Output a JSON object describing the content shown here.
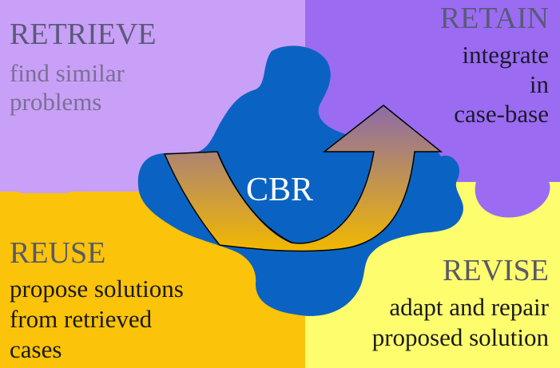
{
  "colors": {
    "retrieve": "#c9a0f7",
    "retain": "#9b6cf2",
    "reuse": "#fbc30a",
    "revise": "#fdfd6e",
    "center": "#0a63c2",
    "arrow_start": "#8c6ba8",
    "arrow_end": "#f2b800"
  },
  "icons": {
    "puzzle": "puzzle-piece-icon",
    "arrow": "curved-arrow-icon"
  },
  "retrieve": {
    "title": "RETRIEVE",
    "lines": [
      "find similar",
      "problems"
    ]
  },
  "retain": {
    "title": "RETAIN",
    "lines": [
      "integrate",
      "in",
      "case-base"
    ]
  },
  "reuse": {
    "title": "REUSE",
    "lines": [
      "propose solutions",
      "from retrieved",
      "cases"
    ]
  },
  "revise": {
    "title": "REVISE",
    "lines": [
      "adapt and repair",
      "proposed solution"
    ]
  },
  "center": {
    "label": "CBR"
  }
}
